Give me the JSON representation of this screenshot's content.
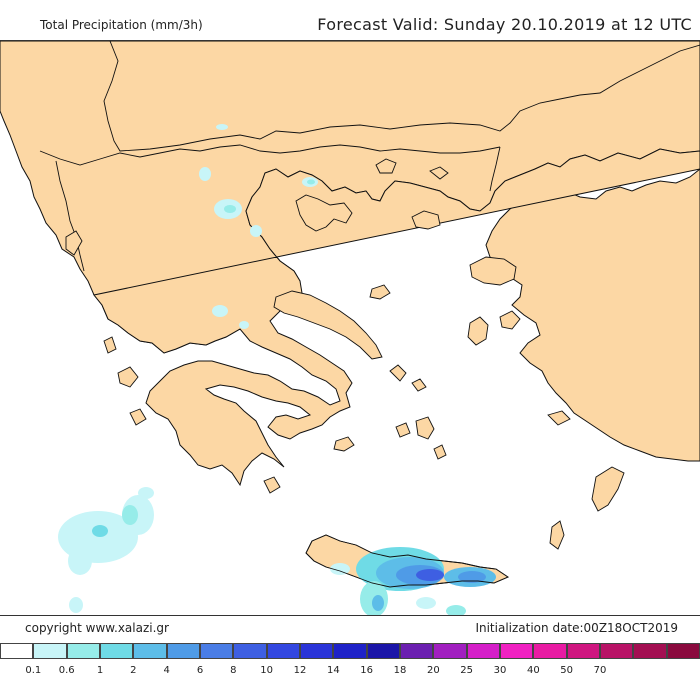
{
  "header": {
    "title": "Total Precipitation (mm/3h)",
    "forecast_valid": "Forecast Valid:  Sunday 20.10.2019 at 12 UTC"
  },
  "footer": {
    "copyright": "copyright www.xalazi.gr",
    "initialization": "Initialization date:00Z18OCT2019"
  },
  "legend": {
    "colors": [
      "#ffffff",
      "#c8f5f8",
      "#96ece9",
      "#6fdbe6",
      "#5dbde8",
      "#4f9be7",
      "#4a7de6",
      "#3e5fe2",
      "#3347e0",
      "#2a34d8",
      "#1f22c8",
      "#1b15a8",
      "#6b1fb0",
      "#a11fc0",
      "#d51fc9",
      "#f021c2",
      "#e81ba3",
      "#cf1680",
      "#b81266",
      "#a30f52",
      "#8a0a3e"
    ],
    "ticks": [
      "0.1",
      "0.6",
      "1",
      "2",
      "4",
      "6",
      "8",
      "10",
      "12",
      "14",
      "16",
      "18",
      "20",
      "25",
      "30",
      "40",
      "50",
      "70"
    ]
  },
  "map": {
    "land_color": "#fcd7a4",
    "sea_color": "#ffffff"
  }
}
